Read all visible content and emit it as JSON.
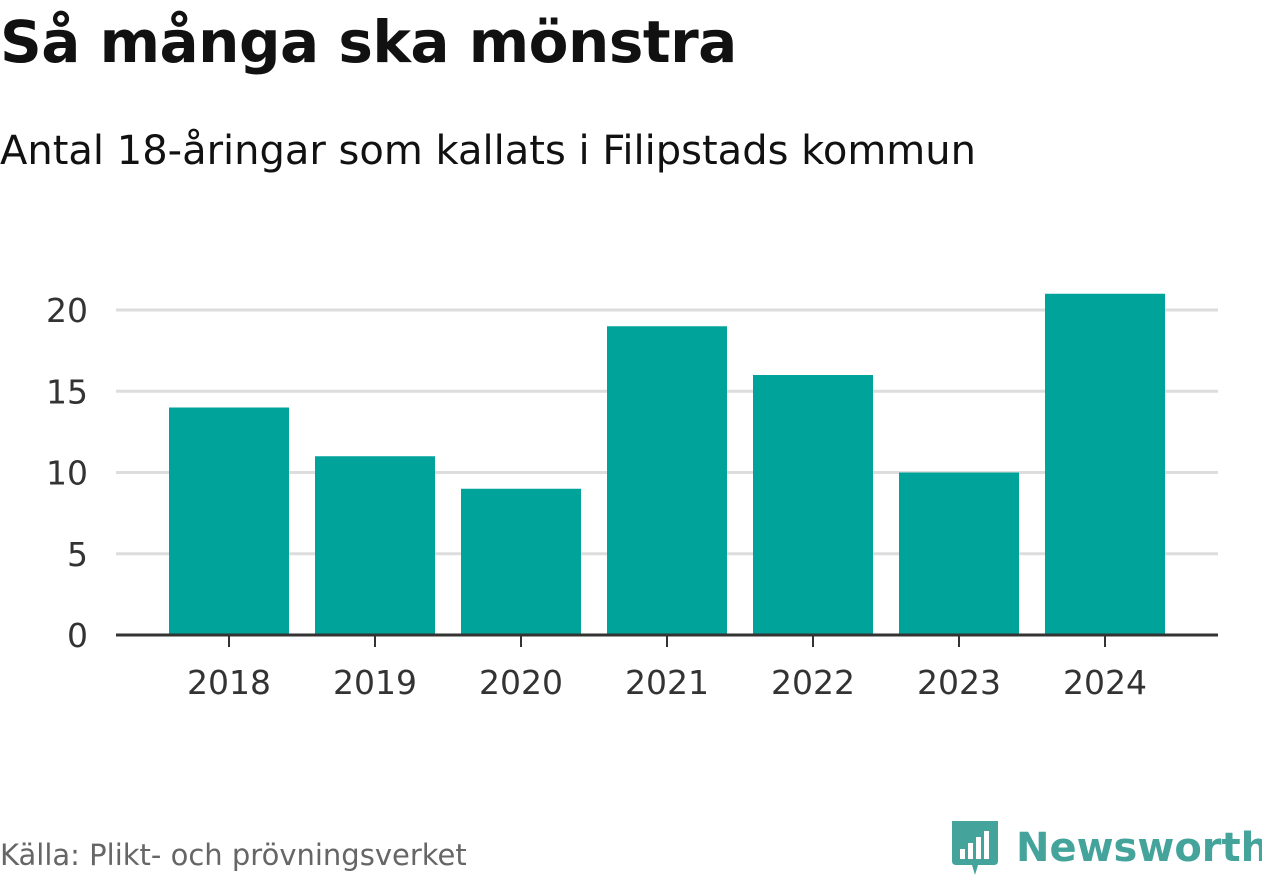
{
  "chart_data": {
    "type": "bar",
    "title": "Så många ska mönstra",
    "subtitle": "Antal 18-åringar som kallats i Filipstads kommun",
    "categories": [
      "2018",
      "2019",
      "2020",
      "2021",
      "2022",
      "2023",
      "2024"
    ],
    "values": [
      14,
      11,
      9,
      19,
      16,
      10,
      21
    ],
    "xlabel": "",
    "ylabel": "",
    "ylim": [
      0,
      20
    ],
    "yticks": [
      0,
      5,
      10,
      15,
      20
    ],
    "ytick_labels": [
      "0",
      "5",
      "10",
      "15",
      "20"
    ],
    "grid": true,
    "legend": "none"
  },
  "colors": {
    "bar": "#00a39a",
    "grid": "#dddddd",
    "axis": "#333333",
    "brand": "#44a39a"
  },
  "footer": {
    "source": "Källa: Plikt- och prövningsverket",
    "brand_name": "Newsworthy",
    "brand_icon": "newsworthy-bar-chart-icon"
  }
}
